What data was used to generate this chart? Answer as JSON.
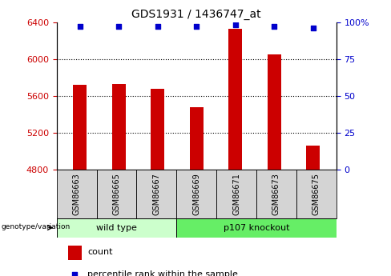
{
  "title": "GDS1931 / 1436747_at",
  "samples": [
    "GSM86663",
    "GSM86665",
    "GSM86667",
    "GSM86669",
    "GSM86671",
    "GSM86673",
    "GSM86675"
  ],
  "counts": [
    5720,
    5730,
    5680,
    5480,
    6330,
    6050,
    5060
  ],
  "percentile_ranks": [
    97,
    97,
    97,
    97,
    98,
    97,
    96
  ],
  "bar_color": "#cc0000",
  "dot_color": "#0000cc",
  "ylim_left": [
    4800,
    6400
  ],
  "ylim_right": [
    0,
    100
  ],
  "yticks_left": [
    4800,
    5200,
    5600,
    6000,
    6400
  ],
  "yticks_right": [
    0,
    25,
    50,
    75,
    100
  ],
  "grid_color": "black",
  "bar_width": 0.35,
  "right_axis_color": "#0000cc",
  "left_axis_color": "#cc0000",
  "wt_color": "#ccffcc",
  "ko_color": "#66ee66",
  "sample_box_color": "#d4d4d4",
  "group1_count": 3,
  "group2_count": 4,
  "group1_label": "wild type",
  "group2_label": "p107 knockout",
  "genotype_label": "genotype/variation",
  "legend_count_label": "count",
  "legend_percentile_label": "percentile rank within the sample"
}
